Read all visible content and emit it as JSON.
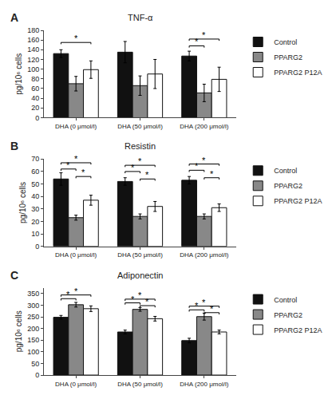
{
  "chart_data": [
    {
      "type": "bar",
      "panel": "A",
      "title": "TNF-α",
      "y_label": "pg/10⁶ cells",
      "categories": [
        "DHA (0 μmol/l)",
        "DHA (50 μmol/l)",
        "DHA (200 μmol/l)"
      ],
      "series": [
        {
          "name": "Control",
          "color": "#111111",
          "values": [
            132,
            135,
            127
          ],
          "errors": [
            8,
            22,
            10
          ]
        },
        {
          "name": "PPARG2",
          "color": "#888888",
          "values": [
            70,
            66,
            51
          ],
          "errors": [
            15,
            20,
            18
          ]
        },
        {
          "name": "PPARG2 P12A",
          "color": "#ffffff",
          "values": [
            99,
            90,
            79
          ],
          "errors": [
            18,
            30,
            25
          ]
        }
      ],
      "edge_color": "#111111",
      "ylim": [
        0,
        180
      ],
      "yticks": [
        0,
        20,
        40,
        60,
        80,
        100,
        120,
        140,
        160,
        180
      ],
      "grid": false,
      "legend": "right",
      "brackets": [
        {
          "category": "DHA (0 μmol/l)",
          "from": "Control",
          "to": "PPARG2 P12A",
          "y": 155,
          "label": "*"
        },
        {
          "category": "DHA (200 μmol/l)",
          "from": "Control",
          "to": "PPARG2",
          "y": 148,
          "label": "*"
        },
        {
          "category": "DHA (200 μmol/l)",
          "from": "Control",
          "to": "PPARG2 P12A",
          "y": 162,
          "label": "*"
        }
      ]
    },
    {
      "type": "bar",
      "panel": "B",
      "title": "Resistin",
      "y_label": "pg/10⁶ cells",
      "categories": [
        "DHA (0 μmol/l)",
        "DHA (50 μmol/l)",
        "DHA (200 μmol/l)"
      ],
      "series": [
        {
          "name": "Control",
          "color": "#111111",
          "values": [
            54,
            52,
            53
          ],
          "errors": [
            5,
            3,
            3
          ]
        },
        {
          "name": "PPARG2",
          "color": "#888888",
          "values": [
            23,
            24,
            24
          ],
          "errors": [
            2,
            2,
            2
          ]
        },
        {
          "name": "PPARG2 P12A",
          "color": "#ffffff",
          "values": [
            37,
            32,
            31
          ],
          "errors": [
            4,
            4,
            3
          ]
        }
      ],
      "edge_color": "#111111",
      "ylim": [
        0,
        70
      ],
      "yticks": [
        0,
        10,
        20,
        30,
        40,
        50,
        60,
        70
      ],
      "grid": false,
      "legend": "right",
      "brackets": [
        {
          "category": "DHA (0 μmol/l)",
          "from": "Control",
          "to": "PPARG2",
          "y": 62,
          "label": "*"
        },
        {
          "category": "DHA (0 μmol/l)",
          "from": "Control",
          "to": "PPARG2 P12A",
          "y": 67,
          "label": "*"
        },
        {
          "category": "DHA (0 μmol/l)",
          "from": "PPARG2",
          "to": "PPARG2 P12A",
          "y": 56,
          "label": "*"
        },
        {
          "category": "DHA (50 μmol/l)",
          "from": "Control",
          "to": "PPARG2",
          "y": 60,
          "label": "*"
        },
        {
          "category": "DHA (50 μmol/l)",
          "from": "Control",
          "to": "PPARG2 P12A",
          "y": 65,
          "label": "*"
        },
        {
          "category": "DHA (50 μmol/l)",
          "from": "PPARG2",
          "to": "PPARG2 P12A",
          "y": 54,
          "label": "*"
        },
        {
          "category": "DHA (200 μmol/l)",
          "from": "Control",
          "to": "PPARG2",
          "y": 61,
          "label": "*"
        },
        {
          "category": "DHA (200 μmol/l)",
          "from": "Control",
          "to": "PPARG2 P12A",
          "y": 66,
          "label": "*"
        },
        {
          "category": "DHA (200 μmol/l)",
          "from": "PPARG2",
          "to": "PPARG2 P12A",
          "y": 55,
          "label": "*"
        }
      ]
    },
    {
      "type": "bar",
      "panel": "C",
      "title": "Adiponectin",
      "y_label": "pg/10⁶ cells",
      "categories": [
        "DHA (0 μmol/l)",
        "DHA (50 μmol/l)",
        "DHA (200 μmol/l)"
      ],
      "series": [
        {
          "name": "Control",
          "color": "#111111",
          "values": [
            248,
            185,
            148
          ],
          "errors": [
            8,
            8,
            10
          ]
        },
        {
          "name": "PPARG2",
          "color": "#888888",
          "values": [
            302,
            282,
            251
          ],
          "errors": [
            10,
            8,
            15
          ]
        },
        {
          "name": "PPARG2 P12A",
          "color": "#ffffff",
          "values": [
            285,
            242,
            185
          ],
          "errors": [
            12,
            10,
            8
          ]
        }
      ],
      "edge_color": "#111111",
      "ylim": [
        0,
        375
      ],
      "yticks": [
        0,
        50,
        100,
        150,
        200,
        250,
        300,
        350
      ],
      "grid": false,
      "legend": "right",
      "brackets": [
        {
          "category": "DHA (0 μmol/l)",
          "from": "Control",
          "to": "PPARG2",
          "y": 328,
          "label": "*"
        },
        {
          "category": "DHA (0 μmol/l)",
          "from": "Control",
          "to": "PPARG2 P12A",
          "y": 344,
          "label": "*"
        },
        {
          "category": "DHA (50 μmol/l)",
          "from": "Control",
          "to": "PPARG2",
          "y": 310,
          "label": "*"
        },
        {
          "category": "DHA (50 μmol/l)",
          "from": "Control",
          "to": "PPARG2 P12A",
          "y": 326,
          "label": "*"
        },
        {
          "category": "DHA (50 μmol/l)",
          "from": "PPARG2",
          "to": "PPARG2 P12A",
          "y": 298,
          "label": "*"
        },
        {
          "category": "DHA (200 μmol/l)",
          "from": "Control",
          "to": "PPARG2",
          "y": 280,
          "label": "*"
        },
        {
          "category": "DHA (200 μmol/l)",
          "from": "Control",
          "to": "PPARG2 P12A",
          "y": 296,
          "label": "*"
        },
        {
          "category": "DHA (200 μmol/l)",
          "from": "PPARG2",
          "to": "PPARG2 P12A",
          "y": 268,
          "label": "*"
        }
      ]
    }
  ]
}
